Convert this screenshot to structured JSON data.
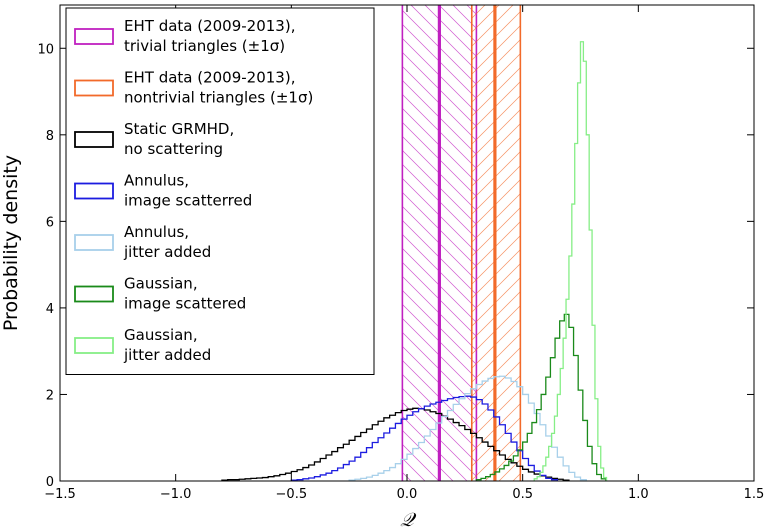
{
  "chart_data": {
    "type": "histogram",
    "title": "",
    "xlabel": "𝒬",
    "ylabel": "Probability density",
    "xlim": [
      -1.5,
      1.5
    ],
    "ylim": [
      0,
      11
    ],
    "xticks": [
      -1.5,
      -1.0,
      -0.5,
      0.0,
      0.5,
      1.0,
      1.5
    ],
    "xtick_labels": [
      "−1.5",
      "−1.0",
      "−0.5",
      "0.0",
      "0.5",
      "1.0",
      "1.5"
    ],
    "yticks": [
      0,
      2,
      4,
      6,
      8,
      10
    ],
    "ytick_labels": [
      "0",
      "2",
      "4",
      "6",
      "8",
      "10"
    ],
    "legend_position": "top-left",
    "bands": [
      {
        "name": "EHT data (2009-2013), trivial triangles (±1σ)",
        "legend_lines": [
          "EHT data (2009-2013),",
          "trivial triangles (±1σ)"
        ],
        "color": "#c020c0",
        "low": -0.02,
        "center": 0.14,
        "high": 0.3
      },
      {
        "name": "EHT data (2009-2013), nontrivial triangles (±1σ)",
        "legend_lines": [
          "EHT data (2009-2013),",
          "nontrivial triangles (±1σ)"
        ],
        "color": "#f26a2a",
        "low": 0.28,
        "center": 0.38,
        "high": 0.49
      }
    ],
    "series": [
      {
        "name": "Static GRMHD, no scattering",
        "legend_lines": [
          "Static GRMHD,",
          "no scattering"
        ],
        "color": "#000000",
        "x_start": -0.8,
        "bin_width": 0.025,
        "values": [
          0.02,
          0.03,
          0.03,
          0.04,
          0.05,
          0.06,
          0.07,
          0.08,
          0.1,
          0.12,
          0.15,
          0.18,
          0.22,
          0.26,
          0.31,
          0.37,
          0.44,
          0.52,
          0.6,
          0.68,
          0.77,
          0.85,
          0.94,
          1.03,
          1.12,
          1.2,
          1.3,
          1.38,
          1.46,
          1.52,
          1.58,
          1.63,
          1.66,
          1.68,
          1.67,
          1.64,
          1.6,
          1.56,
          1.5,
          1.43,
          1.35,
          1.28,
          1.19,
          1.1,
          1.0,
          0.9,
          0.8,
          0.7,
          0.6,
          0.5,
          0.42,
          0.34,
          0.27,
          0.21,
          0.16,
          0.12,
          0.09,
          0.06,
          0.04,
          0.02
        ]
      },
      {
        "name": "Annulus, image scatterred",
        "legend_lines": [
          "Annulus,",
          "image scatterred"
        ],
        "color": "#1c1ce0",
        "x_start": -0.5,
        "bin_width": 0.025,
        "values": [
          0.02,
          0.03,
          0.05,
          0.07,
          0.1,
          0.14,
          0.18,
          0.24,
          0.3,
          0.38,
          0.46,
          0.55,
          0.66,
          0.77,
          0.89,
          1.0,
          1.11,
          1.22,
          1.33,
          1.43,
          1.52,
          1.6,
          1.67,
          1.73,
          1.78,
          1.82,
          1.86,
          1.9,
          1.93,
          1.95,
          1.96,
          1.94,
          1.88,
          1.78,
          1.64,
          1.48,
          1.3,
          1.1,
          0.9,
          0.7,
          0.52,
          0.36,
          0.23,
          0.13,
          0.06,
          0.03
        ]
      },
      {
        "name": "Annulus, jitter added",
        "legend_lines": [
          "Annulus,",
          "jitter added"
        ],
        "color": "#a8d0ea",
        "x_start": -0.25,
        "bin_width": 0.025,
        "values": [
          0.02,
          0.04,
          0.06,
          0.09,
          0.13,
          0.18,
          0.24,
          0.31,
          0.4,
          0.5,
          0.62,
          0.75,
          0.89,
          1.04,
          1.19,
          1.34,
          1.49,
          1.63,
          1.77,
          1.9,
          2.02,
          2.13,
          2.23,
          2.31,
          2.37,
          2.41,
          2.42,
          2.38,
          2.3,
          2.18,
          2.0,
          1.8,
          1.56,
          1.3,
          1.04,
          0.78,
          0.55,
          0.35,
          0.2,
          0.09,
          0.03
        ]
      },
      {
        "name": "Gaussian, image scattered",
        "legend_lines": [
          "Gaussian,",
          "image scattered"
        ],
        "color": "#1a8a1a",
        "x_start": 0.3,
        "bin_width": 0.02,
        "values": [
          0.03,
          0.06,
          0.1,
          0.15,
          0.21,
          0.28,
          0.36,
          0.46,
          0.58,
          0.72,
          0.9,
          1.1,
          1.35,
          1.65,
          2.0,
          2.4,
          2.85,
          3.3,
          3.7,
          3.85,
          3.55,
          2.9,
          2.1,
          1.4,
          0.8,
          0.4,
          0.15,
          0.05
        ]
      },
      {
        "name": "Gaussian, jitter added",
        "legend_lines": [
          "Gaussian,",
          "jitter added"
        ],
        "color": "#86ee86",
        "x_start": 0.55,
        "bin_width": 0.0125,
        "values": [
          0.05,
          0.1,
          0.2,
          0.35,
          0.55,
          0.8,
          1.1,
          1.5,
          2.0,
          2.6,
          3.3,
          4.2,
          5.2,
          6.4,
          7.8,
          9.2,
          10.15,
          9.7,
          8.0,
          5.8,
          3.6,
          1.9,
          0.8,
          0.3,
          0.08
        ]
      }
    ]
  }
}
